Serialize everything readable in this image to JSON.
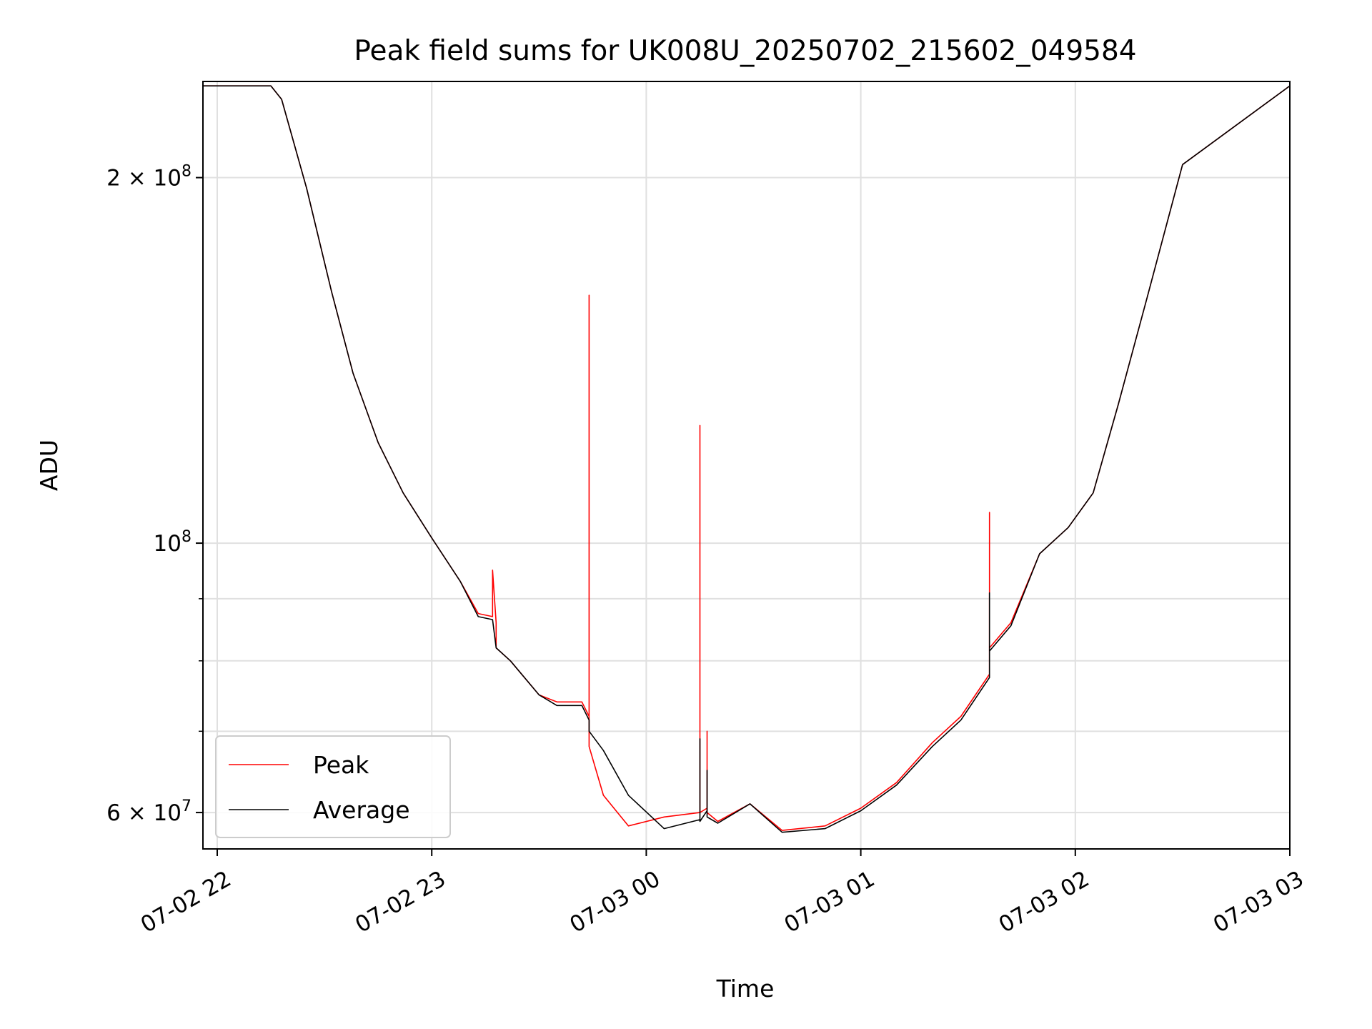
{
  "chart_data": {
    "type": "line",
    "title": "Peak field sums for UK008U_20250702_215602_049584",
    "xlabel": "Time",
    "ylabel": "ADU",
    "yscale": "log",
    "ylim": [
      56000000,
      240000000
    ],
    "xlim": [
      "2025-07-02 21:56",
      "2025-07-03 03:00"
    ],
    "grid": true,
    "legend_position": "lower-left",
    "x_tick_labels": [
      "07-02 22",
      "07-02 23",
      "07-03 00",
      "07-03 01",
      "07-03 02",
      "07-03 03"
    ],
    "y_tick_labels": [
      "2 × 10^8",
      "10^8",
      "6 × 10^7"
    ],
    "y_ticks": [
      200000000,
      100000000,
      60000000
    ],
    "y_minor_ticks": [
      70000000,
      80000000,
      90000000
    ],
    "colors": {
      "Peak": "#ff0000",
      "Average": "#000000"
    },
    "series": [
      {
        "name": "Peak",
        "x": [
          "2025-07-02 21:56",
          "2025-07-02 22:15",
          "2025-07-02 22:18",
          "2025-07-02 22:25",
          "2025-07-02 22:32",
          "2025-07-02 22:38",
          "2025-07-02 22:45",
          "2025-07-02 22:52",
          "2025-07-02 23:00",
          "2025-07-02 23:08",
          "2025-07-02 23:13",
          "2025-07-02 23:17",
          "2025-07-02 23:17",
          "2025-07-02 23:18",
          "2025-07-02 23:18",
          "2025-07-02 23:22",
          "2025-07-02 23:30",
          "2025-07-02 23:35",
          "2025-07-02 23:42",
          "2025-07-02 23:44",
          "2025-07-02 23:44",
          "2025-07-02 23:44",
          "2025-07-02 23:48",
          "2025-07-02 23:55",
          "2025-07-03 00:05",
          "2025-07-03 00:15",
          "2025-07-03 00:15",
          "2025-07-03 00:15",
          "2025-07-03 00:17",
          "2025-07-03 00:17",
          "2025-07-03 00:17",
          "2025-07-03 00:20",
          "2025-07-03 00:29",
          "2025-07-03 00:38",
          "2025-07-03 00:50",
          "2025-07-03 01:00",
          "2025-07-03 01:10",
          "2025-07-03 01:20",
          "2025-07-03 01:28",
          "2025-07-03 01:36",
          "2025-07-03 01:36",
          "2025-07-03 01:36",
          "2025-07-03 01:42",
          "2025-07-03 01:50",
          "2025-07-03 01:58",
          "2025-07-03 02:05",
          "2025-07-03 02:12",
          "2025-07-03 02:20",
          "2025-07-03 02:30",
          "2025-07-03 03:00"
        ],
        "y": [
          238000000,
          238000000,
          232000000,
          196000000,
          161000000,
          138000000,
          121000000,
          110000000,
          101000000,
          93000000,
          87500000,
          87000000,
          95000000,
          86000000,
          82000000,
          80000000,
          75000000,
          74000000,
          74000000,
          72000000,
          160000000,
          68000000,
          62000000,
          58500000,
          59500000,
          60000000,
          125000000,
          60000000,
          60500000,
          70000000,
          60000000,
          59000000,
          61000000,
          58000000,
          58500000,
          60500000,
          63500000,
          68500000,
          72000000,
          78000000,
          106000000,
          82000000,
          86000000,
          98000000,
          103000000,
          110000000,
          130000000,
          159000000,
          205000000,
          238000000
        ]
      },
      {
        "name": "Average",
        "x": [
          "2025-07-02 21:56",
          "2025-07-02 22:15",
          "2025-07-02 22:18",
          "2025-07-02 22:25",
          "2025-07-02 22:32",
          "2025-07-02 22:38",
          "2025-07-02 22:45",
          "2025-07-02 22:52",
          "2025-07-02 23:00",
          "2025-07-02 23:08",
          "2025-07-02 23:13",
          "2025-07-02 23:17",
          "2025-07-02 23:18",
          "2025-07-02 23:22",
          "2025-07-02 23:30",
          "2025-07-02 23:35",
          "2025-07-02 23:42",
          "2025-07-02 23:44",
          "2025-07-02 23:44",
          "2025-07-02 23:48",
          "2025-07-02 23:55",
          "2025-07-03 00:05",
          "2025-07-03 00:15",
          "2025-07-03 00:15",
          "2025-07-03 00:15",
          "2025-07-03 00:17",
          "2025-07-03 00:17",
          "2025-07-03 00:17",
          "2025-07-03 00:20",
          "2025-07-03 00:29",
          "2025-07-03 00:38",
          "2025-07-03 00:50",
          "2025-07-03 01:00",
          "2025-07-03 01:10",
          "2025-07-03 01:20",
          "2025-07-03 01:28",
          "2025-07-03 01:36",
          "2025-07-03 01:36",
          "2025-07-03 01:36",
          "2025-07-03 01:42",
          "2025-07-03 01:50",
          "2025-07-03 01:58",
          "2025-07-03 02:05",
          "2025-07-03 02:12",
          "2025-07-03 02:20",
          "2025-07-03 02:30",
          "2025-07-03 03:00"
        ],
        "y": [
          238000000,
          238000000,
          232000000,
          196000000,
          161000000,
          138000000,
          121000000,
          110000000,
          101000000,
          93000000,
          87000000,
          86500000,
          82000000,
          80000000,
          75000000,
          73500000,
          73500000,
          71500000,
          70000000,
          67500000,
          62000000,
          58200000,
          59200000,
          69000000,
          59000000,
          60200000,
          65000000,
          59500000,
          58800000,
          61000000,
          57800000,
          58200000,
          60200000,
          63200000,
          68000000,
          71500000,
          77500000,
          91000000,
          81500000,
          85500000,
          98000000,
          103000000,
          110000000,
          130000000,
          159000000,
          205000000,
          238000000
        ]
      }
    ]
  }
}
